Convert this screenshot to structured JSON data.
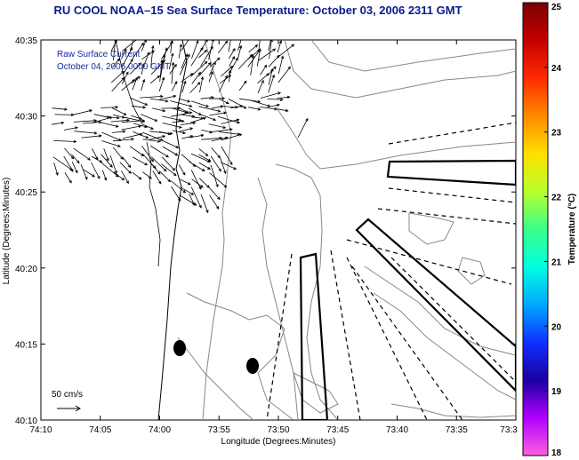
{
  "title": "RU COOL  NOAA–15  Sea Surface Temperature:  October 03, 2006 2311 GMT",
  "annotations": {
    "current_label": "Raw Surface Current",
    "current_date": "October 04, 2006 0000 GMT",
    "scale_label": "50 cm/s"
  },
  "chart_data": {
    "type": "map",
    "xlabel": "Longitude (Degrees:Minutes)",
    "ylabel": "Latitude (Degrees:Minutes)",
    "x_ticks": [
      "74:10",
      "74:05",
      "74:00",
      "73:55",
      "73:50",
      "73:45",
      "73:40",
      "73:35",
      "73:3"
    ],
    "y_ticks": [
      "40:35",
      "40:30",
      "40:25",
      "40:20",
      "40:15",
      "40:10"
    ],
    "xlim_minutes_west": [
      70,
      30
    ],
    "ylim_minutes_north": [
      10,
      35
    ],
    "colorbar": {
      "label": "Temperature (°C)",
      "min": 18,
      "max": 25,
      "ticks": [
        "25",
        "24",
        "23",
        "22",
        "21",
        "20",
        "19",
        "18"
      ],
      "colors_top_to_bottom": [
        "#7a0000",
        "#c40000",
        "#ff2a00",
        "#ff8a00",
        "#ffe000",
        "#b8ff2a",
        "#3aff8a",
        "#00ffe0",
        "#00a8ff",
        "#1030ff",
        "#1a00a0",
        "#b000ff",
        "#ff60e0"
      ]
    }
  }
}
